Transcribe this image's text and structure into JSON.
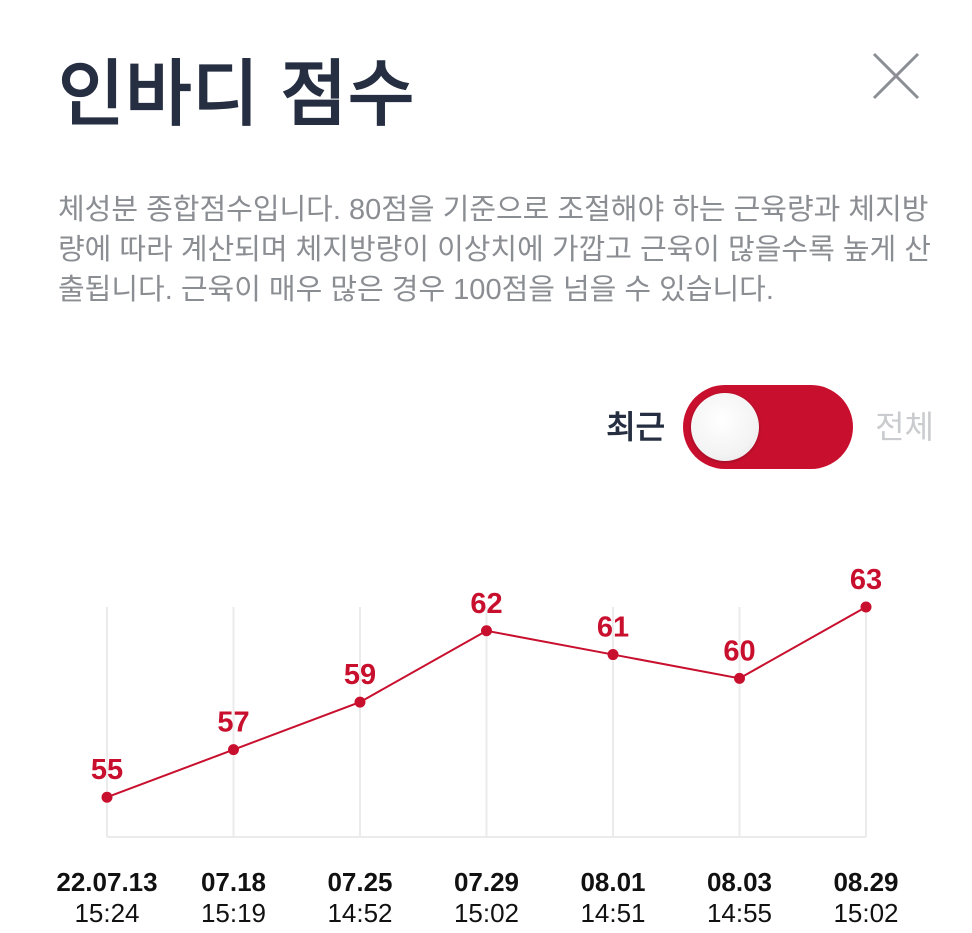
{
  "header": {
    "title": "인바디 점수"
  },
  "icons": {
    "close": "close-icon"
  },
  "description": "체성분 종합점수입니다. 80점을 기준으로 조절해야 하는 근육량과 체지방량에 따라 계산되며 체지방량이 이상치에 가깝고 근육이 많을수록 높게 산출됩니다. 근육이 매우 많은 경우 100점을 넘을 수 있습니다.",
  "toggle": {
    "left_label": "최근",
    "right_label": "전체",
    "selected": "최근",
    "color": "#c8102e"
  },
  "chart_data": {
    "type": "line",
    "categories": [
      "22.07.13",
      "07.18",
      "07.25",
      "07.29",
      "08.01",
      "08.03",
      "08.29"
    ],
    "times": [
      "15:24",
      "15:19",
      "14:52",
      "15:02",
      "14:51",
      "14:55",
      "15:02"
    ],
    "series": [
      {
        "values": [
          55,
          57,
          59,
          62,
          61,
          60,
          63
        ],
        "color": "#c8102e"
      }
    ],
    "ylim": [
      54,
      63
    ],
    "grid": "vertical",
    "data_labels": true
  }
}
